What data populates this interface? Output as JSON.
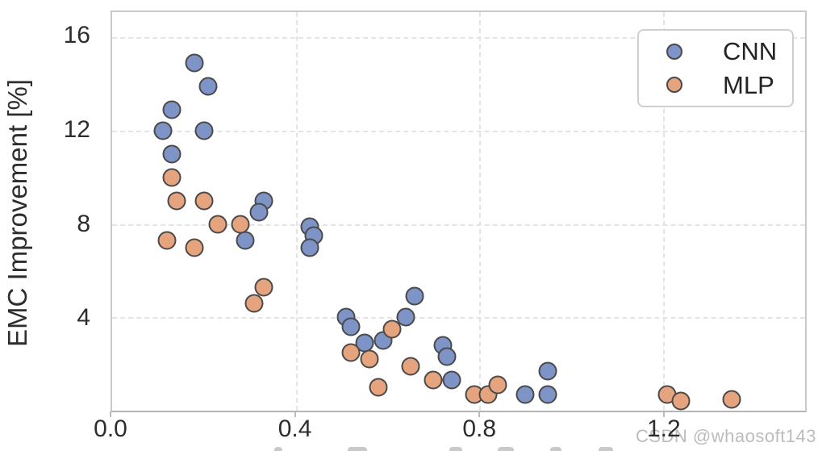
{
  "page": {
    "watermark": "CSDN @whaosoft143"
  },
  "chart_data": {
    "type": "scatter",
    "title": "",
    "xlabel": "",
    "ylabel": "EMC Improvement [%]",
    "xlim": [
      0,
      1.51
    ],
    "ylim": [
      0,
      17.08
    ],
    "grid": true,
    "grid_style": "dashed",
    "legend_position": "upper right",
    "xticks": {
      "values": [
        0,
        0.4,
        0.8,
        1.2
      ],
      "labels": [
        "0.0",
        "0.4",
        "0.8",
        "1.2"
      ]
    },
    "yticks": {
      "values": [
        4,
        8,
        12,
        16
      ],
      "labels": [
        "4",
        "8",
        "12",
        "16"
      ]
    },
    "marker_edge_color": "#4a4a4a",
    "series": [
      {
        "name": "CNN",
        "marker_color": "#7e93c6",
        "points": [
          [
            0.18,
            14.9
          ],
          [
            0.21,
            13.9
          ],
          [
            0.13,
            12.9
          ],
          [
            0.11,
            12.0
          ],
          [
            0.2,
            12.0
          ],
          [
            0.13,
            11.0
          ],
          [
            0.33,
            9.0
          ],
          [
            0.32,
            8.5
          ],
          [
            0.29,
            7.3
          ],
          [
            0.43,
            7.9
          ],
          [
            0.44,
            7.5
          ],
          [
            0.43,
            7.0
          ],
          [
            0.66,
            4.9
          ],
          [
            0.51,
            4.0
          ],
          [
            0.52,
            3.6
          ],
          [
            0.64,
            4.0
          ],
          [
            0.55,
            2.9
          ],
          [
            0.59,
            3.0
          ],
          [
            0.72,
            2.8
          ],
          [
            0.73,
            2.3
          ],
          [
            0.74,
            1.3
          ],
          [
            0.95,
            1.7
          ],
          [
            0.9,
            0.7
          ],
          [
            0.95,
            0.7
          ]
        ]
      },
      {
        "name": "MLP",
        "marker_color": "#e6a47e",
        "points": [
          [
            0.13,
            10.0
          ],
          [
            0.14,
            9.0
          ],
          [
            0.2,
            9.0
          ],
          [
            0.23,
            8.0
          ],
          [
            0.28,
            8.0
          ],
          [
            0.12,
            7.3
          ],
          [
            0.18,
            7.0
          ],
          [
            0.33,
            5.3
          ],
          [
            0.31,
            4.6
          ],
          [
            0.61,
            3.5
          ],
          [
            0.52,
            2.5
          ],
          [
            0.56,
            2.2
          ],
          [
            0.65,
            1.9
          ],
          [
            0.7,
            1.3
          ],
          [
            0.58,
            1.0
          ],
          [
            0.79,
            0.7
          ],
          [
            0.82,
            0.7
          ],
          [
            0.84,
            1.1
          ],
          [
            1.21,
            0.7
          ],
          [
            1.24,
            0.4
          ],
          [
            1.35,
            0.5
          ]
        ]
      }
    ]
  }
}
